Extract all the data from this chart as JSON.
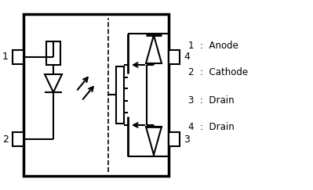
{
  "bg_color": "#ffffff",
  "line_color": "#000000",
  "legend_entries": [
    "1  :  Anode",
    "2  :  Cathode",
    "3  :  Drain",
    "4  :  Drain"
  ]
}
